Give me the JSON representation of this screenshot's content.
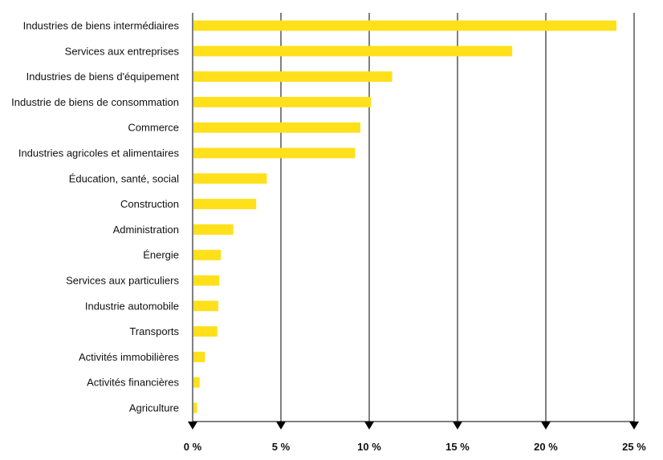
{
  "colors": {
    "bar": "#FFE01B",
    "axis": "#000000",
    "grid": "#000000",
    "text": "#111111"
  },
  "chart_data": {
    "type": "bar",
    "orientation": "horizontal",
    "title": "",
    "xlabel": "",
    "ylabel": "",
    "xlim": [
      0,
      25
    ],
    "grid": true,
    "categories": [
      "Industries de biens intermédiaires",
      "Services aux entreprises",
      "Industries de biens d'équipement",
      "Industrie de biens de consommation",
      "Commerce",
      "Industries agricoles et alimentaires",
      "Éducation, santé, social",
      "Construction",
      "Administration",
      "Énergie",
      "Services aux particuliers",
      "Industrie automobile",
      "Transports",
      "Activités immobilières",
      "Activités financières",
      "Agriculture"
    ],
    "values": [
      24.0,
      18.1,
      11.3,
      10.1,
      9.5,
      9.2,
      4.2,
      3.6,
      2.3,
      1.6,
      1.5,
      1.45,
      1.4,
      0.7,
      0.4,
      0.25
    ],
    "ticks": [
      0,
      5,
      10,
      15,
      20,
      25
    ],
    "tick_labels": [
      "0 %",
      "5 %",
      "10 %",
      "15 %",
      "20 %",
      "25 %"
    ]
  }
}
